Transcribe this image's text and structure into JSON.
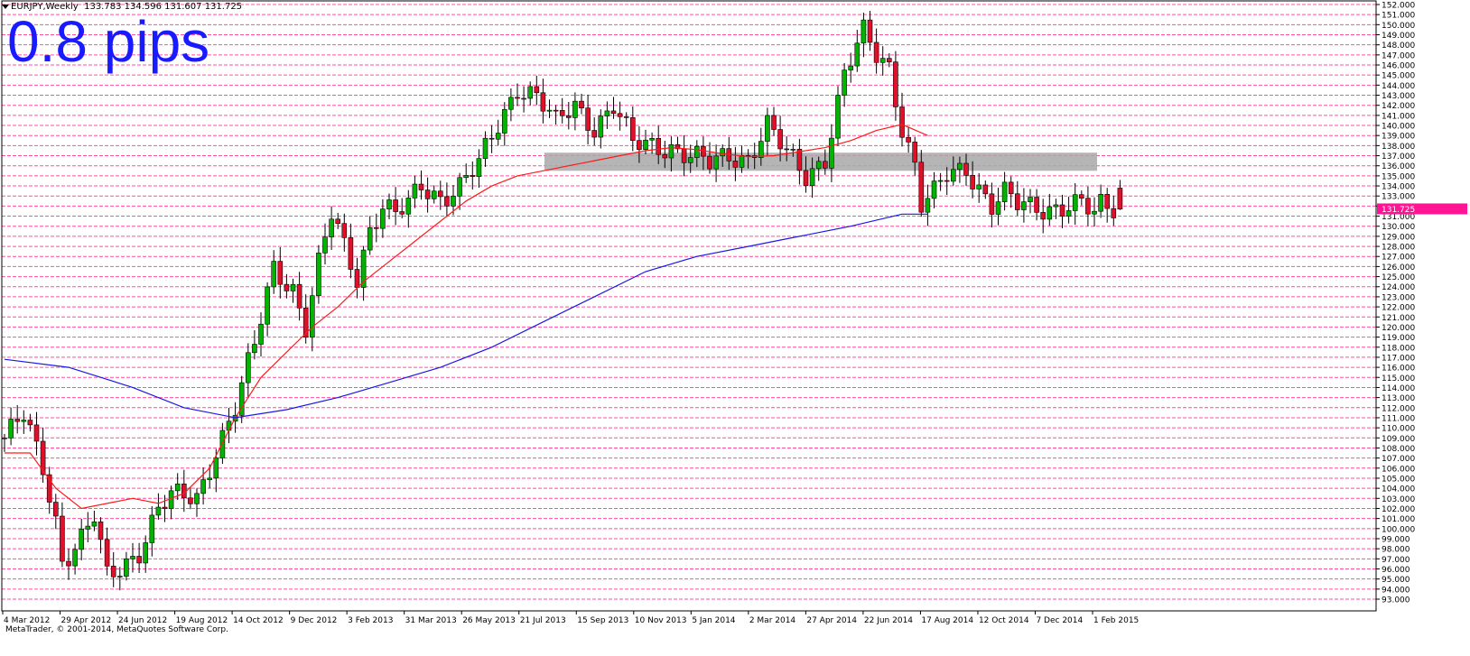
{
  "header": {
    "symbol_text": "EURJPY,Weekly",
    "ohlc_text": "133.783 134.596 131.607 131.725"
  },
  "overlay_text": "0.8 pips",
  "copyright": "MetaTrader, © 2001-2014, MetaQuotes Software Corp.",
  "colors": {
    "bull": "#00b400",
    "bear": "#e0102a",
    "grid": "#ff4fa0",
    "ma_fast": "#ff1a1a",
    "ma_slow": "#1a1ae6",
    "zone": "#a8a8a8",
    "price_tag": "#ff1493",
    "overlay": "#1a1aff"
  },
  "chart_data": {
    "type": "candlestick",
    "symbol": "EURJPY",
    "timeframe": "Weekly",
    "grid": true,
    "ylim": [
      93.0,
      152.0
    ],
    "y_ticks": [
      "152.000",
      "151.000",
      "150.000",
      "149.000",
      "148.000",
      "147.000",
      "146.000",
      "145.000",
      "144.000",
      "143.000",
      "142.000",
      "141.000",
      "140.000",
      "139.000",
      "138.000",
      "137.000",
      "136.000",
      "135.000",
      "134.000",
      "133.000",
      "132.000",
      "131.000",
      "130.000",
      "129.000",
      "128.000",
      "127.000",
      "126.000",
      "125.000",
      "124.000",
      "123.000",
      "122.000",
      "121.000",
      "120.000",
      "119.000",
      "118.000",
      "117.000",
      "116.000",
      "115.000",
      "114.000",
      "113.000",
      "112.000",
      "111.000",
      "110.000",
      "109.000",
      "108.000",
      "107.000",
      "106.000",
      "105.000",
      "104.000",
      "103.000",
      "102.000",
      "101.000",
      "100.000",
      "99.000",
      "98.000",
      "97.000",
      "96.000",
      "95.000",
      "94.000",
      "93.000"
    ],
    "x_labels": [
      "4 Mar 2012",
      "29 Apr 2012",
      "24 Jun 2012",
      "19 Aug 2012",
      "14 Oct 2012",
      "9 Dec 2012",
      "3 Feb 2013",
      "31 Mar 2013",
      "26 May 2013",
      "21 Jul 2013",
      "15 Sep 2013",
      "10 Nov 2013",
      "5 Jan 2014",
      "2 Mar 2014",
      "27 Apr 2014",
      "22 Jun 2014",
      "17 Aug 2014",
      "12 Oct 2014",
      "7 Dec 2014",
      "1 Feb 2015"
    ],
    "current_price": "131.725",
    "support_zone": [
      135.5,
      137.3
    ],
    "close_path": {
      "week_index": [
        0,
        3,
        6,
        8,
        9,
        12,
        14,
        16,
        18,
        21,
        24,
        26,
        28,
        30,
        33,
        36,
        39,
        42,
        45,
        47,
        49,
        51,
        53,
        55,
        57,
        59,
        61,
        63,
        65,
        68,
        71,
        74,
        77,
        80,
        83,
        86,
        89,
        92,
        95,
        98,
        101,
        104,
        107,
        110,
        113,
        116,
        119,
        122,
        125,
        128,
        131,
        134,
        136,
        138,
        140,
        142,
        143,
        145,
        147,
        150,
        152,
        154,
        156,
        158,
        160,
        162,
        164,
        166,
        168,
        170,
        171,
        172,
        173,
        174
      ],
      "close": [
        109,
        111,
        106,
        101,
        97,
        99,
        101,
        95,
        96,
        98,
        102,
        103,
        103,
        103,
        108,
        112,
        118,
        126,
        124,
        120,
        126,
        131,
        128,
        125,
        130,
        132,
        131,
        132,
        134,
        133,
        134,
        136,
        140,
        144,
        143,
        140,
        142,
        140,
        142,
        138,
        138,
        138,
        137,
        136,
        137,
        137,
        140,
        137,
        135,
        137,
        145,
        149,
        147,
        146,
        140,
        136,
        132,
        133,
        135,
        136,
        134,
        132,
        133,
        132,
        132,
        132,
        132,
        132,
        132,
        131,
        132,
        132,
        132,
        131.7
      ]
    },
    "ma_fast": {
      "name": "",
      "week_index": [
        0,
        4,
        8,
        12,
        16,
        20,
        24,
        28,
        32,
        36,
        40,
        44,
        48,
        52,
        56,
        60,
        64,
        68,
        72,
        76,
        80,
        84,
        88,
        92,
        96,
        100,
        104,
        108,
        112,
        116,
        120,
        124,
        128,
        132,
        136,
        140,
        144
      ],
      "value": [
        107.5,
        107.5,
        104,
        102,
        102.5,
        103,
        102.5,
        103.5,
        106,
        111,
        115,
        117.5,
        120,
        122,
        124.5,
        126.5,
        128.5,
        130.5,
        132.5,
        134,
        135,
        135.5,
        136,
        136.5,
        137,
        137.5,
        137.8,
        137.6,
        137.2,
        136.9,
        137.0,
        137.4,
        137.8,
        138.5,
        139.5,
        140.1,
        139.0
      ]
    },
    "ma_slow": {
      "name": "",
      "week_index": [
        0,
        10,
        20,
        28,
        36,
        44,
        52,
        60,
        68,
        76,
        84,
        92,
        100,
        108,
        116,
        124,
        132,
        140,
        144
      ],
      "value": [
        116.8,
        116,
        114,
        112,
        111,
        111.8,
        113,
        114.5,
        116,
        118,
        120.5,
        123,
        125.5,
        127,
        128,
        129,
        130,
        131.2,
        131.2
      ]
    }
  }
}
